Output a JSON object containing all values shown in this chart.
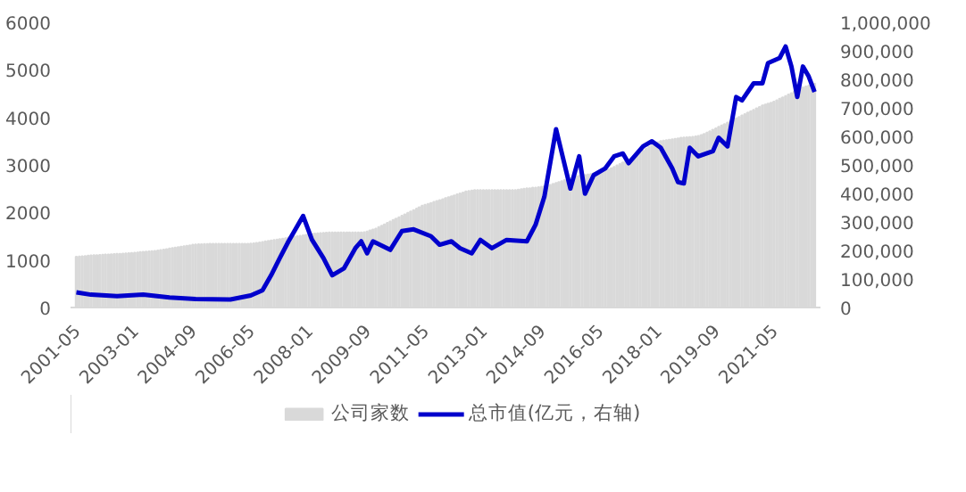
{
  "chart_data": {
    "type": "bar",
    "x": [
      "2001-05",
      "2001-06",
      "2001-07",
      "2001-08",
      "2001-09",
      "2001-10",
      "2001-11",
      "2001-12",
      "2002-01",
      "2002-02",
      "2002-03",
      "2002-04",
      "2002-05",
      "2002-06",
      "2002-07",
      "2002-08",
      "2002-09",
      "2002-10",
      "2002-11",
      "2002-12",
      "2003-01",
      "2003-02",
      "2003-03",
      "2003-04",
      "2003-05",
      "2003-06",
      "2003-07",
      "2003-08",
      "2003-09",
      "2003-10",
      "2003-11",
      "2003-12",
      "2004-01",
      "2004-02",
      "2004-03",
      "2004-04",
      "2004-05",
      "2004-06",
      "2004-07",
      "2004-08",
      "2004-09",
      "2004-10",
      "2004-11",
      "2004-12",
      "2005-01",
      "2005-02",
      "2005-03",
      "2005-04",
      "2005-05",
      "2005-06",
      "2005-07",
      "2005-08",
      "2005-09",
      "2005-10",
      "2005-11",
      "2005-12",
      "2006-01",
      "2006-02",
      "2006-03",
      "2006-04",
      "2006-05",
      "2006-06",
      "2006-07",
      "2006-08",
      "2006-09",
      "2006-10",
      "2006-11",
      "2006-12",
      "2007-01",
      "2007-02",
      "2007-03",
      "2007-04",
      "2007-05",
      "2007-06",
      "2007-07",
      "2007-08",
      "2007-09",
      "2007-10",
      "2007-11",
      "2007-12",
      "2008-01",
      "2008-02",
      "2008-03",
      "2008-04",
      "2008-05",
      "2008-06",
      "2008-07",
      "2008-08",
      "2008-09",
      "2008-10",
      "2008-11",
      "2008-12",
      "2009-01",
      "2009-02",
      "2009-03",
      "2009-04",
      "2009-05",
      "2009-06",
      "2009-07",
      "2009-08",
      "2009-09",
      "2009-10",
      "2009-11",
      "2009-12",
      "2010-01",
      "2010-02",
      "2010-03",
      "2010-04",
      "2010-05",
      "2010-06",
      "2010-07",
      "2010-08",
      "2010-09",
      "2010-10",
      "2010-11",
      "2010-12",
      "2011-01",
      "2011-02",
      "2011-03",
      "2011-04",
      "2011-05",
      "2011-06",
      "2011-07",
      "2011-08",
      "2011-09",
      "2011-10",
      "2011-11",
      "2011-12",
      "2012-01",
      "2012-02",
      "2012-03",
      "2012-04",
      "2012-05",
      "2012-06",
      "2012-07",
      "2012-08",
      "2012-09",
      "2012-10",
      "2012-11",
      "2012-12",
      "2013-01",
      "2013-02",
      "2013-03",
      "2013-04",
      "2013-05",
      "2013-06",
      "2013-07",
      "2013-08",
      "2013-09",
      "2013-10",
      "2013-11",
      "2013-12",
      "2014-01",
      "2014-02",
      "2014-03",
      "2014-04",
      "2014-05",
      "2014-06",
      "2014-07",
      "2014-08",
      "2014-09",
      "2014-10",
      "2014-11",
      "2014-12",
      "2015-01",
      "2015-02",
      "2015-03",
      "2015-04",
      "2015-05",
      "2015-06",
      "2015-07",
      "2015-08",
      "2015-09",
      "2015-10",
      "2015-11",
      "2015-12",
      "2016-01",
      "2016-02",
      "2016-03",
      "2016-04",
      "2016-05",
      "2016-06",
      "2016-07",
      "2016-08",
      "2016-09",
      "2016-10",
      "2016-11",
      "2016-12",
      "2017-01",
      "2017-02",
      "2017-03",
      "2017-04",
      "2017-05",
      "2017-06",
      "2017-07",
      "2017-08",
      "2017-09",
      "2017-10",
      "2017-11",
      "2017-12",
      "2018-01",
      "2018-02",
      "2018-03",
      "2018-04",
      "2018-05",
      "2018-06",
      "2018-07",
      "2018-08",
      "2018-09",
      "2018-10",
      "2018-11",
      "2018-12",
      "2019-01",
      "2019-02",
      "2019-03",
      "2019-04",
      "2019-05",
      "2019-06",
      "2019-07",
      "2019-08",
      "2019-09",
      "2019-10",
      "2019-11",
      "2019-12",
      "2020-01",
      "2020-02",
      "2020-03",
      "2020-04",
      "2020-05",
      "2020-06",
      "2020-07",
      "2020-08",
      "2020-09",
      "2020-10",
      "2020-11",
      "2020-12",
      "2021-01",
      "2021-02",
      "2021-03",
      "2021-04",
      "2021-05",
      "2021-06",
      "2021-07",
      "2021-08",
      "2021-09",
      "2021-10",
      "2021-11",
      "2021-12",
      "2022-01",
      "2022-02",
      "2022-03",
      "2022-04",
      "2022-05",
      "2022-06",
      "2022-07"
    ],
    "xlim": [
      "2001-03",
      "2022-09"
    ],
    "xticks": [
      {
        "value": "2001-05",
        "label": "2001-05"
      },
      {
        "value": "2003-01",
        "label": "2003-01"
      },
      {
        "value": "2004-09",
        "label": "2004-09"
      },
      {
        "value": "2006-05",
        "label": "2006-05"
      },
      {
        "value": "2008-01",
        "label": "2008-01"
      },
      {
        "value": "2009-09",
        "label": "2009-09"
      },
      {
        "value": "2011-05",
        "label": "2011-05"
      },
      {
        "value": "2013-01",
        "label": "2013-01"
      },
      {
        "value": "2014-09",
        "label": "2014-09"
      },
      {
        "value": "2016-05",
        "label": "2016-05"
      },
      {
        "value": "2018-01",
        "label": "2018-01"
      },
      {
        "value": "2019-09",
        "label": "2019-09"
      },
      {
        "value": "2021-05",
        "label": "2021-05"
      }
    ],
    "ylim": [
      0,
      6000
    ],
    "yticks": [
      0,
      1000,
      2000,
      3000,
      4000,
      5000,
      6000
    ],
    "y2lim": [
      0,
      1000000
    ],
    "y2ticks": [
      {
        "value": 0,
        "label": "0"
      },
      {
        "value": 100000,
        "label": "100,000"
      },
      {
        "value": 200000,
        "label": "200,000"
      },
      {
        "value": 300000,
        "label": "300,000"
      },
      {
        "value": 400000,
        "label": "400,000"
      },
      {
        "value": 500000,
        "label": "500,000"
      },
      {
        "value": 600000,
        "label": "600,000"
      },
      {
        "value": 700000,
        "label": "700,000"
      },
      {
        "value": 800000,
        "label": "800,000"
      },
      {
        "value": 900000,
        "label": "900,000"
      },
      {
        "value": 1000000,
        "label": "1,000,000"
      }
    ],
    "grid": false,
    "legend": "bottom",
    "series": [
      {
        "name": "公司家数",
        "color": "#d9d9d9",
        "values": [
          1070,
          1075,
          1080,
          1085,
          1090,
          1095,
          1100,
          1100,
          1105,
          1110,
          1115,
          1115,
          1120,
          1125,
          1130,
          1130,
          1135,
          1140,
          1145,
          1150,
          1155,
          1160,
          1165,
          1170,
          1175,
          1180,
          1185,
          1190,
          1200,
          1210,
          1220,
          1230,
          1240,
          1250,
          1260,
          1270,
          1280,
          1290,
          1300,
          1310,
          1320,
          1325,
          1330,
          1330,
          1335,
          1335,
          1340,
          1340,
          1340,
          1340,
          1340,
          1340,
          1340,
          1340,
          1340,
          1340,
          1340,
          1340,
          1340,
          1340,
          1345,
          1350,
          1360,
          1370,
          1380,
          1390,
          1400,
          1410,
          1420,
          1430,
          1440,
          1450,
          1460,
          1470,
          1480,
          1490,
          1500,
          1510,
          1520,
          1530,
          1540,
          1550,
          1555,
          1560,
          1565,
          1570,
          1575,
          1580,
          1580,
          1580,
          1580,
          1580,
          1580,
          1580,
          1580,
          1580,
          1580,
          1580,
          1580,
          1585,
          1600,
          1620,
          1640,
          1660,
          1690,
          1720,
          1750,
          1780,
          1810,
          1840,
          1870,
          1900,
          1930,
          1960,
          1990,
          2020,
          2050,
          2080,
          2110,
          2140,
          2160,
          2180,
          2200,
          2220,
          2240,
          2260,
          2280,
          2300,
          2320,
          2340,
          2360,
          2380,
          2400,
          2420,
          2440,
          2450,
          2460,
          2470,
          2470,
          2470,
          2470,
          2470,
          2470,
          2470,
          2470,
          2470,
          2470,
          2470,
          2470,
          2470,
          2470,
          2470,
          2480,
          2490,
          2500,
          2510,
          2510,
          2520,
          2520,
          2530,
          2540,
          2550,
          2560,
          2580,
          2600,
          2620,
          2640,
          2660,
          2680,
          2700,
          2720,
          2740,
          2760,
          2770,
          2780,
          2790,
          2800,
          2810,
          2820,
          2830,
          2840,
          2860,
          2880,
          2900,
          2930,
          2960,
          2990,
          3020,
          3050,
          3080,
          3110,
          3140,
          3180,
          3220,
          3260,
          3300,
          3340,
          3380,
          3420,
          3460,
          3480,
          3500,
          3510,
          3520,
          3530,
          3540,
          3550,
          3560,
          3570,
          3575,
          3580,
          3585,
          3590,
          3600,
          3610,
          3630,
          3650,
          3680,
          3710,
          3740,
          3770,
          3800,
          3830,
          3860,
          3890,
          3920,
          3950,
          3980,
          4010,
          4040,
          4070,
          4100,
          4130,
          4160,
          4190,
          4220,
          4250,
          4270,
          4290,
          4310,
          4330,
          4360,
          4390,
          4420,
          4450,
          4480,
          4510,
          4540,
          4570,
          4600,
          4630,
          4650,
          4670,
          4690,
          4710
        ]
      },
      {
        "name": "总市值(亿元，右轴)",
        "type": "line",
        "axis": "y2",
        "color": "#0000cc",
        "x": [
          "2001-05",
          "2001-10",
          "2002-07",
          "2003-04",
          "2004-01",
          "2004-10",
          "2005-10",
          "2006-05",
          "2006-09",
          "2006-12",
          "2007-03",
          "2007-06",
          "2007-11",
          "2008-02",
          "2008-06",
          "2008-09",
          "2009-01",
          "2009-05",
          "2009-07",
          "2009-09",
          "2009-11",
          "2010-05",
          "2010-09",
          "2011-01",
          "2011-07",
          "2011-10",
          "2012-02",
          "2012-05",
          "2012-09",
          "2012-12",
          "2013-04",
          "2013-09",
          "2014-04",
          "2014-07",
          "2014-10",
          "2015-02",
          "2015-07",
          "2015-10",
          "2015-12",
          "2016-03",
          "2016-07",
          "2016-10",
          "2017-01",
          "2017-03",
          "2017-08",
          "2017-11",
          "2018-02",
          "2018-06",
          "2018-08",
          "2018-10",
          "2018-12",
          "2019-03",
          "2019-08",
          "2019-10",
          "2020-01",
          "2020-04",
          "2020-06",
          "2020-10",
          "2021-01",
          "2021-03",
          "2021-07",
          "2021-09",
          "2021-11",
          "2022-01",
          "2022-03",
          "2022-05",
          "2022-07"
        ],
        "values": [
          53000,
          45000,
          40000,
          45000,
          35000,
          30000,
          28000,
          42000,
          60000,
          113000,
          173000,
          232000,
          321000,
          238000,
          173000,
          113000,
          137000,
          208000,
          232000,
          190000,
          232000,
          202000,
          268000,
          274000,
          250000,
          220000,
          232000,
          208000,
          190000,
          237000,
          208000,
          237000,
          232000,
          290000,
          388000,
          625000,
          417000,
          530000,
          399000,
          464000,
          488000,
          530000,
          540000,
          506000,
          565000,
          583000,
          560000,
          488000,
          440000,
          435000,
          560000,
          530000,
          548000,
          595000,
          565000,
          738000,
          726000,
          786000,
          786000,
          857000,
          875000,
          915000,
          845000,
          738000,
          845000,
          810000,
          756000
        ]
      }
    ]
  }
}
